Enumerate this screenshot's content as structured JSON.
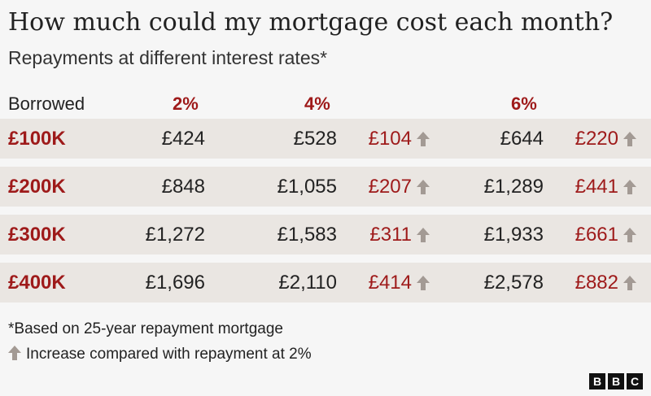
{
  "title": "How much could my mortgage cost each month?",
  "subtitle": "Repayments at different interest rates*",
  "colors": {
    "accent": "#9e1a1a",
    "row_bg": "#eae6e2",
    "arrow": "#a39a94",
    "background": "#f6f6f6"
  },
  "chart_data": {
    "type": "table",
    "headers": {
      "borrowed": "Borrowed",
      "rate_2": "2%",
      "rate_4": "4%",
      "rate_6": "6%"
    },
    "rows": [
      {
        "borrowed": "£100K",
        "r2": "£424",
        "r4": "£528",
        "inc4": "£104",
        "r6": "£644",
        "inc6": "£220"
      },
      {
        "borrowed": "£200K",
        "r2": "£848",
        "r4": "£1,055",
        "inc4": "£207",
        "r6": "£1,289",
        "inc6": "£441"
      },
      {
        "borrowed": "£300K",
        "r2": "£1,272",
        "r4": "£1,583",
        "inc4": "£311",
        "r6": "£1,933",
        "inc6": "£661"
      },
      {
        "borrowed": "£400K",
        "r2": "£1,696",
        "r4": "£2,110",
        "inc4": "£414",
        "r6": "£2,578",
        "inc6": "£882"
      }
    ]
  },
  "footnote": "*Based on 25-year repayment mortgage",
  "legend": {
    "icon": "up-arrow-icon",
    "label": "Increase compared with repayment at 2%"
  },
  "logo": {
    "letters": [
      "B",
      "B",
      "C"
    ]
  }
}
